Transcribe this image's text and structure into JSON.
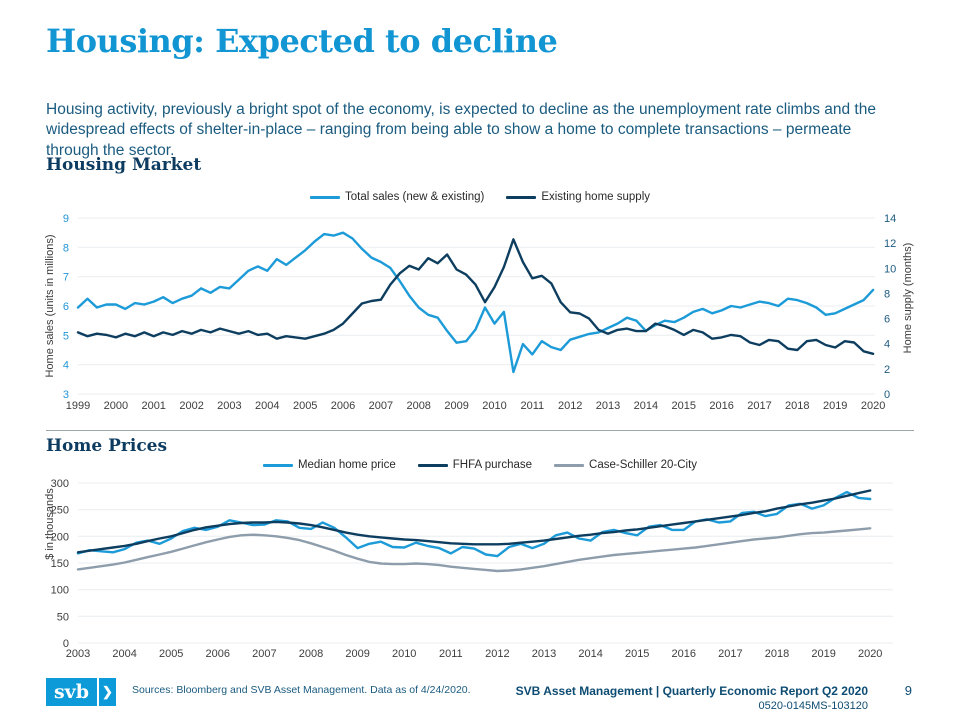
{
  "title": "Housing: Expected to decline",
  "intro": "Housing activity, previously a bright spot of the economy, is expected to decline as the unemployment rate climbs and the widespread effects of shelter-in-place – ranging from being able to show a home to complete transactions – permeate through the sector.",
  "colors": {
    "accent_blue": "#1295D3",
    "heading_navy": "#0D3C60",
    "body_text": "#1A5B80",
    "light_blue_line": "#1C9BD8",
    "navy_line": "#0E3E5F",
    "gray_line": "#8E9DAB",
    "gridline": "#E9EDF0"
  },
  "chart_data": [
    {
      "type": "line",
      "title": "Housing Market",
      "x_start": 1999,
      "x_step": 0.25,
      "x_ticks": [
        1999,
        2000,
        2001,
        2002,
        2003,
        2004,
        2005,
        2006,
        2007,
        2008,
        2009,
        2010,
        2011,
        2012,
        2013,
        2014,
        2015,
        2016,
        2017,
        2018,
        2019,
        2020
      ],
      "grid": true,
      "legend_position": "top",
      "left_axis": {
        "label": "Home sales (units in millions)",
        "range": [
          3,
          9
        ],
        "ticks": [
          3,
          4,
          5,
          6,
          7,
          8,
          9
        ],
        "tick_color": "#2196D6"
      },
      "right_axis": {
        "label": "Home supply (months)",
        "range": [
          0,
          14
        ],
        "ticks": [
          0,
          2,
          4,
          6,
          8,
          10,
          12,
          14
        ],
        "tick_color": "#1C5A80"
      },
      "series": [
        {
          "id": "total-sales",
          "name": "Total sales (new & existing)",
          "axis": "left",
          "color": "#1C9BD8",
          "values": [
            5.95,
            6.25,
            5.95,
            6.05,
            6.05,
            5.9,
            6.1,
            6.05,
            6.15,
            6.3,
            6.1,
            6.25,
            6.35,
            6.6,
            6.45,
            6.65,
            6.6,
            6.9,
            7.2,
            7.35,
            7.2,
            7.6,
            7.4,
            7.65,
            7.9,
            8.2,
            8.45,
            8.4,
            8.5,
            8.3,
            7.95,
            7.65,
            7.5,
            7.3,
            6.85,
            6.35,
            5.95,
            5.7,
            5.6,
            5.15,
            4.75,
            4.8,
            5.2,
            5.95,
            5.4,
            5.8,
            3.75,
            4.7,
            4.35,
            4.8,
            4.6,
            4.5,
            4.85,
            4.95,
            5.05,
            5.1,
            5.25,
            5.4,
            5.6,
            5.5,
            5.15,
            5.35,
            5.5,
            5.45,
            5.6,
            5.8,
            5.9,
            5.75,
            5.85,
            6.0,
            5.95,
            6.05,
            6.15,
            6.1,
            6.0,
            6.25,
            6.2,
            6.1,
            5.95,
            5.7,
            5.75,
            5.9,
            6.05,
            6.2,
            6.55
          ]
        },
        {
          "id": "home-supply",
          "name": "Existing home supply",
          "axis": "right",
          "color": "#0E3E5F",
          "values": [
            4.9,
            4.6,
            4.8,
            4.7,
            4.5,
            4.8,
            4.6,
            4.9,
            4.6,
            4.9,
            4.7,
            5.0,
            4.8,
            5.1,
            4.9,
            5.2,
            5.0,
            4.8,
            5.0,
            4.7,
            4.8,
            4.4,
            4.6,
            4.5,
            4.4,
            4.6,
            4.8,
            5.1,
            5.6,
            6.4,
            7.2,
            7.4,
            7.5,
            8.7,
            9.6,
            10.2,
            9.9,
            10.8,
            10.4,
            11.1,
            9.9,
            9.5,
            8.7,
            7.3,
            8.5,
            10.1,
            12.3,
            10.5,
            9.2,
            9.4,
            8.8,
            7.3,
            6.5,
            6.4,
            6.0,
            5.1,
            4.8,
            5.1,
            5.2,
            5.0,
            5.0,
            5.6,
            5.4,
            5.1,
            4.7,
            5.1,
            4.9,
            4.4,
            4.5,
            4.7,
            4.6,
            4.1,
            3.9,
            4.3,
            4.2,
            3.6,
            3.5,
            4.2,
            4.3,
            3.9,
            3.7,
            4.2,
            4.1,
            3.4,
            3.2
          ]
        }
      ]
    },
    {
      "type": "line",
      "title": "Home Prices",
      "x_start": 2003,
      "x_step": 0.25,
      "x_ticks": [
        2003,
        2004,
        2005,
        2006,
        2007,
        2008,
        2009,
        2010,
        2011,
        2012,
        2013,
        2014,
        2015,
        2016,
        2017,
        2018,
        2019,
        2020
      ],
      "grid": true,
      "legend_position": "top",
      "left_axis": {
        "label": "$ in thousands",
        "range": [
          0,
          300
        ],
        "ticks": [
          0,
          50,
          100,
          150,
          200,
          250,
          300
        ],
        "tick_color": "#3E3E3E"
      },
      "series": [
        {
          "id": "median-home-price",
          "name": "Median home price",
          "axis": "left",
          "color": "#1C9BD8",
          "values": [
            168,
            174,
            172,
            170,
            176,
            188,
            192,
            186,
            196,
            210,
            216,
            212,
            218,
            230,
            226,
            221,
            222,
            230,
            228,
            216,
            214,
            226,
            216,
            198,
            178,
            186,
            190,
            180,
            179,
            188,
            182,
            178,
            168,
            180,
            177,
            166,
            163,
            180,
            186,
            178,
            186,
            202,
            207,
            196,
            192,
            208,
            212,
            206,
            202,
            218,
            221,
            212,
            212,
            228,
            232,
            226,
            228,
            244,
            246,
            238,
            242,
            258,
            261,
            252,
            258,
            272,
            283,
            272,
            270
          ]
        },
        {
          "id": "fhfa-purchase",
          "name": "FHFA purchase",
          "axis": "left",
          "color": "#0E3E5F",
          "values": [
            170,
            173,
            176,
            179,
            182,
            186,
            191,
            196,
            200,
            206,
            212,
            217,
            220,
            223,
            225,
            226,
            226,
            227,
            226,
            224,
            221,
            217,
            212,
            207,
            203,
            200,
            198,
            196,
            194,
            193,
            191,
            189,
            187,
            186,
            185,
            185,
            185,
            186,
            188,
            190,
            192,
            195,
            198,
            201,
            203,
            206,
            208,
            211,
            213,
            216,
            219,
            222,
            225,
            228,
            231,
            234,
            237,
            240,
            244,
            247,
            252,
            256,
            260,
            263,
            267,
            271,
            276,
            281,
            286
          ]
        },
        {
          "id": "case-schiller",
          "name": "Case-Schiller 20-City",
          "axis": "left",
          "color": "#8E9DAB",
          "values": [
            138,
            141,
            144,
            147,
            151,
            156,
            161,
            166,
            171,
            177,
            183,
            189,
            194,
            199,
            202,
            203,
            202,
            200,
            197,
            193,
            187,
            180,
            173,
            165,
            158,
            152,
            149,
            148,
            148,
            149,
            148,
            146,
            143,
            141,
            139,
            137,
            135,
            136,
            138,
            141,
            144,
            148,
            152,
            156,
            159,
            162,
            165,
            167,
            169,
            171,
            173,
            175,
            177,
            179,
            182,
            185,
            188,
            191,
            194,
            196,
            198,
            201,
            204,
            206,
            207,
            209,
            211,
            213,
            215
          ]
        }
      ]
    }
  ],
  "footer": {
    "logo_text": "svb",
    "chevron": "❯",
    "sources": "Sources: Bloomberg and SVB Asset Management. Data as of 4/24/2020.",
    "report_title": "SVB Asset Management | Quarterly Economic Report Q2 2020",
    "doc_number": "0520-0145MS-103120",
    "page_number": "9"
  }
}
